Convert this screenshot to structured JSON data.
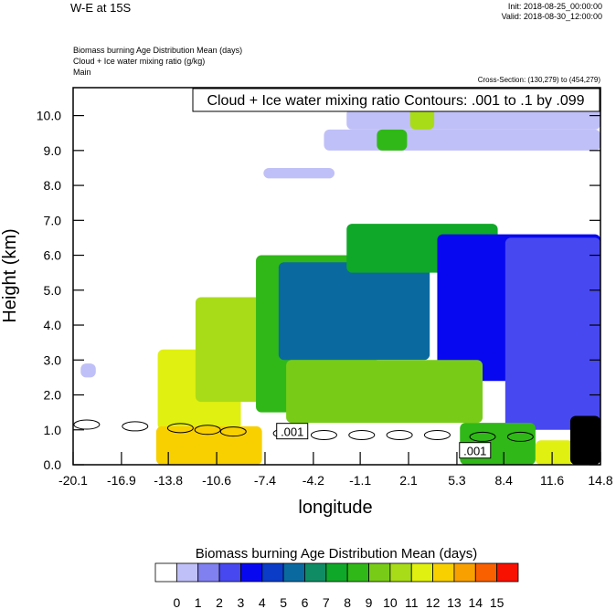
{
  "header": {
    "title": "W-E at 15S",
    "init": "Init: 2018-08-25_00:00:00",
    "valid": "Valid: 2018-08-30_12:00:00",
    "field1": "Biomass burning Age Distribution Mean   (days)",
    "field2": "Cloud + Ice water mixing ratio   (g/kg)",
    "domain": "Main",
    "cross_section": "Cross-Section: (130,279) to (454,279)"
  },
  "chart_data": {
    "type": "heatmap",
    "contour_label": "Cloud + Ice water mixing ratio Contours: .001 to .1 by .099",
    "xlabel": "longitude",
    "ylabel": "Height (km)",
    "x_ticks": [
      "-20.1",
      "-16.9",
      "-13.8",
      "-10.6",
      "-7.4",
      "-4.2",
      "-1.1",
      "2.1",
      "5.3",
      "8.4",
      "11.6",
      "14.8"
    ],
    "y_ticks": [
      "0.0",
      "1.0",
      "2.0",
      "3.0",
      "4.0",
      "5.0",
      "6.0",
      "7.0",
      "8.0",
      "9.0",
      "10.0"
    ],
    "xlim": [
      -20.1,
      14.8
    ],
    "ylim": [
      0,
      10.8
    ],
    "colorbar": {
      "title": "Biomass burning Age Distribution Mean  (days)",
      "labels": [
        "0",
        "1",
        "2",
        "3",
        "4",
        "5",
        "6",
        "7",
        "8",
        "9",
        "10",
        "11",
        "12",
        "13",
        "14",
        "15"
      ],
      "colors": [
        "#ffffff",
        "#c0c0f8",
        "#8080f0",
        "#4848f0",
        "#0808f0",
        "#0a3cc8",
        "#0a6aa0",
        "#108c64",
        "#10a828",
        "#30b818",
        "#78cc18",
        "#a8dc18",
        "#e0f010",
        "#f8d000",
        "#f8a000",
        "#f86000",
        "#f81000"
      ]
    },
    "contour_value_labels": [
      ".001",
      ".001"
    ],
    "regions": [
      {
        "name": "far-west-column",
        "x0": -19.6,
        "x1": -18.6,
        "y0": 2.5,
        "y1": 2.9,
        "level": 1
      },
      {
        "name": "cirrus-1",
        "x0": -7.5,
        "x1": -2.8,
        "y0": 8.2,
        "y1": 8.5,
        "level": 1
      },
      {
        "name": "cirrus-2",
        "x0": -3.5,
        "x1": 14.8,
        "y0": 9.0,
        "y1": 9.6,
        "level": 1
      },
      {
        "name": "cirrus-3",
        "x0": -2.0,
        "x1": 14.8,
        "y0": 9.6,
        "y1": 10.2,
        "level": 1
      },
      {
        "name": "cirrus-4",
        "x0": 3.0,
        "x1": 14.8,
        "y0": 10.2,
        "y1": 10.7,
        "level": 1
      },
      {
        "name": "upper-green",
        "x0": 0.0,
        "x1": 2.0,
        "y0": 9.0,
        "y1": 9.6,
        "level": 9
      },
      {
        "name": "upper-yellow",
        "x0": 2.2,
        "x1": 3.8,
        "y0": 9.6,
        "y1": 10.7,
        "level": 11
      },
      {
        "name": "plume-west-yellow",
        "x0": -14.5,
        "x1": -9.0,
        "y0": 1.0,
        "y1": 3.3,
        "level": 12
      },
      {
        "name": "plume-west-green",
        "x0": -12.0,
        "x1": -7.5,
        "y0": 1.8,
        "y1": 4.8,
        "level": 11
      },
      {
        "name": "plume-mid",
        "x0": -8.0,
        "x1": 0.0,
        "y0": 1.5,
        "y1": 6.0,
        "level": 9
      },
      {
        "name": "plume-mid-teal",
        "x0": -6.5,
        "x1": 3.5,
        "y0": 3.0,
        "y1": 5.8,
        "level": 6
      },
      {
        "name": "plume-top",
        "x0": -2.0,
        "x1": 8.0,
        "y0": 5.5,
        "y1": 6.9,
        "level": 8
      },
      {
        "name": "plume-east-blue",
        "x0": 4.0,
        "x1": 14.8,
        "y0": 2.4,
        "y1": 6.6,
        "level": 4
      },
      {
        "name": "plume-east-core",
        "x0": 8.5,
        "x1": 14.8,
        "y0": 1.0,
        "y1": 6.5,
        "level": 3
      },
      {
        "name": "plume-lower",
        "x0": -6.0,
        "x1": 7.0,
        "y0": 1.2,
        "y1": 3.0,
        "level": 10
      },
      {
        "name": "surface-orange-west",
        "x0": -14.6,
        "x1": -7.6,
        "y0": 0.0,
        "y1": 1.1,
        "level": 13
      },
      {
        "name": "surface-green-east",
        "x0": 5.5,
        "x1": 10.5,
        "y0": 0.0,
        "y1": 1.2,
        "level": 9
      },
      {
        "name": "surface-yellow-east",
        "x0": 10.5,
        "x1": 13.0,
        "y0": 0.0,
        "y1": 0.7,
        "level": 12
      },
      {
        "name": "terrain",
        "x0": 12.8,
        "x1": 14.8,
        "y0": 0.0,
        "y1": 1.4,
        "level": -1
      }
    ]
  }
}
